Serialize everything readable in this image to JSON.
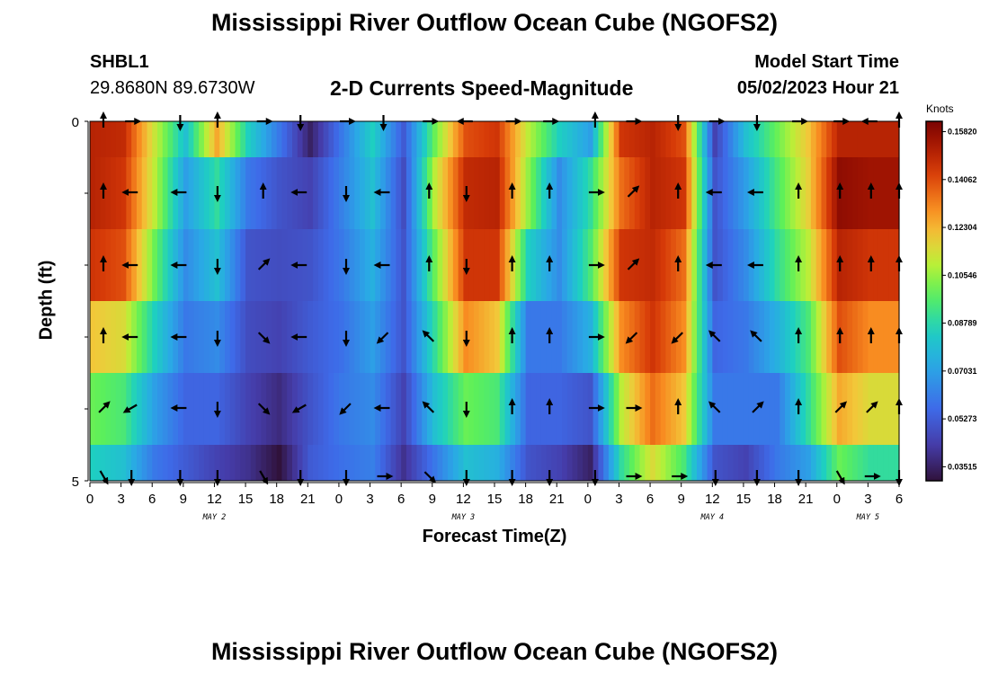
{
  "title": "Mississippi River Outflow Ocean Cube (NGOFS2)",
  "bottom_title": "Mississippi River Outflow Ocean Cube (NGOFS2)",
  "station": {
    "id": "SHBL1",
    "coords": "29.8680N  89.6730W"
  },
  "subtitle": "2-D Currents Speed-Magnitude",
  "model_start": {
    "label": "Model Start Time",
    "value": "05/02/2023 Hour 21"
  },
  "chart_data": {
    "type": "heatmap",
    "title": "2-D Currents Speed-Magnitude",
    "xlabel": "Forecast Time(Z)",
    "ylabel": "Depth (ft)",
    "colorbar_unit": "Knots",
    "colorbar_ticks": [
      "0.15820",
      "0.14062",
      "0.12304",
      "0.10546",
      "0.08789",
      "0.07031",
      "0.05273",
      "0.03515"
    ],
    "colorbar_range": [
      0.03,
      0.162
    ],
    "x_tick_labels": [
      "0",
      "3",
      "6",
      "9",
      "12",
      "15",
      "18",
      "21",
      "0",
      "3",
      "6",
      "9",
      "12",
      "15",
      "18",
      "21",
      "0",
      "3",
      "6",
      "9",
      "12",
      "15",
      "18",
      "21",
      "0",
      "3",
      "6"
    ],
    "date_labels": [
      {
        "label": "MAY 2",
        "hour": 12
      },
      {
        "label": "MAY 3",
        "hour": 36
      },
      {
        "label": "MAY 4",
        "hour": 60
      },
      {
        "label": "MAY 5",
        "hour": 75
      }
    ],
    "x_range_hours": [
      0,
      78
    ],
    "y_tick_labels": [
      "0",
      "5"
    ],
    "y_range": [
      0,
      5
    ],
    "layers": 6,
    "columns": 26,
    "speed": [
      [
        0.15,
        0.148,
        0.112,
        0.08,
        0.125,
        0.085,
        0.06,
        0.035,
        0.06,
        0.085,
        0.052,
        0.1,
        0.14,
        0.145,
        0.11,
        0.085,
        0.07,
        0.145,
        0.15,
        0.14,
        0.045,
        0.08,
        0.1,
        0.12,
        0.15,
        0.15
      ],
      [
        0.15,
        0.145,
        0.11,
        0.07,
        0.09,
        0.06,
        0.05,
        0.045,
        0.062,
        0.08,
        0.048,
        0.11,
        0.148,
        0.15,
        0.105,
        0.065,
        0.09,
        0.135,
        0.15,
        0.145,
        0.05,
        0.07,
        0.095,
        0.118,
        0.158,
        0.155
      ],
      [
        0.145,
        0.14,
        0.1,
        0.065,
        0.08,
        0.05,
        0.048,
        0.05,
        0.06,
        0.075,
        0.05,
        0.1,
        0.145,
        0.145,
        0.085,
        0.065,
        0.095,
        0.145,
        0.148,
        0.135,
        0.05,
        0.065,
        0.09,
        0.11,
        0.15,
        0.145
      ],
      [
        0.12,
        0.115,
        0.085,
        0.06,
        0.065,
        0.048,
        0.045,
        0.052,
        0.058,
        0.07,
        0.05,
        0.09,
        0.13,
        0.12,
        0.06,
        0.06,
        0.075,
        0.13,
        0.145,
        0.13,
        0.055,
        0.06,
        0.075,
        0.095,
        0.14,
        0.13
      ],
      [
        0.1,
        0.095,
        0.07,
        0.055,
        0.055,
        0.045,
        0.038,
        0.05,
        0.06,
        0.065,
        0.045,
        0.08,
        0.1,
        0.095,
        0.055,
        0.055,
        0.05,
        0.11,
        0.135,
        0.12,
        0.06,
        0.06,
        0.06,
        0.09,
        0.125,
        0.115
      ],
      [
        0.085,
        0.08,
        0.06,
        0.052,
        0.045,
        0.04,
        0.03,
        0.052,
        0.058,
        0.062,
        0.04,
        0.06,
        0.08,
        0.075,
        0.05,
        0.045,
        0.035,
        0.09,
        0.115,
        0.095,
        0.05,
        0.045,
        0.06,
        0.07,
        0.1,
        0.09
      ]
    ],
    "arrow_hours": [
      1.3,
      4,
      8.7,
      12.3,
      16.7,
      20.3,
      24.7,
      28.3,
      32.7,
      36.3,
      40.7,
      44.3,
      48.7,
      52.3,
      56.7,
      60.3,
      64.3,
      68.3,
      72.3,
      75.3,
      78
    ],
    "arrow_dirs_deg": [
      [
        270,
        0,
        90,
        270,
        0,
        90,
        0,
        90,
        0,
        180,
        0,
        0,
        270,
        0,
        90,
        0,
        90,
        0,
        0,
        180,
        270
      ],
      [
        270,
        180,
        180,
        90,
        270,
        180,
        90,
        180,
        270,
        90,
        270,
        270,
        0,
        315,
        270,
        180,
        180,
        270,
        270,
        270,
        270
      ],
      [
        270,
        180,
        180,
        90,
        315,
        180,
        90,
        180,
        270,
        90,
        270,
        270,
        0,
        315,
        270,
        180,
        180,
        270,
        270,
        270,
        270
      ],
      [
        270,
        180,
        180,
        90,
        45,
        180,
        90,
        135,
        225,
        90,
        270,
        270,
        0,
        135,
        135,
        225,
        225,
        270,
        270,
        270,
        270
      ],
      [
        315,
        150,
        180,
        90,
        45,
        150,
        135,
        180,
        225,
        90,
        270,
        270,
        0,
        0,
        270,
        225,
        315,
        270,
        315,
        315,
        270
      ],
      [
        60,
        90,
        90,
        90,
        60,
        90,
        90,
        0,
        45,
        90,
        90,
        90,
        90,
        0,
        0,
        90,
        90,
        90,
        60,
        0,
        90
      ]
    ]
  }
}
